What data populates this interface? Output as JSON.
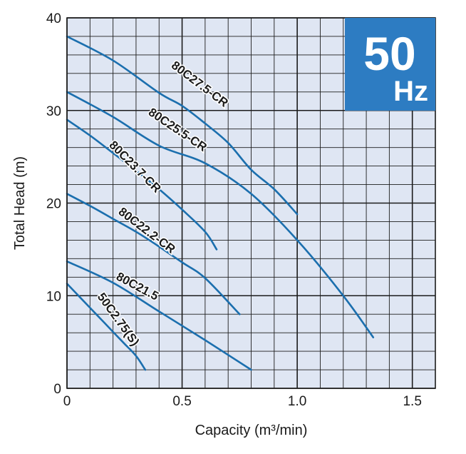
{
  "badge": {
    "value": "50",
    "unit": "Hz",
    "color": "#2d7cc2"
  },
  "colors": {
    "plot_bg": "#dfe6f3",
    "grid": "#1c1c1c",
    "curve": "#1b6fae"
  },
  "chart_data": {
    "type": "line",
    "title": "",
    "xlabel": "Capacity (m³/min)",
    "ylabel": "Total Head (m)",
    "xlim": [
      0,
      1.6
    ],
    "ylim": [
      0,
      40
    ],
    "x_ticks": [
      0,
      0.5,
      1.0,
      1.5
    ],
    "x_tick_labels": [
      "0",
      "0.5",
      "1.0",
      "1.5"
    ],
    "y_ticks": [
      0,
      10,
      20,
      30,
      40
    ],
    "y_tick_labels": [
      "0",
      "10",
      "20",
      "30",
      "40"
    ],
    "minor_grid_x": 0.1,
    "minor_grid_y": 2,
    "grid": true,
    "series": [
      {
        "name": "80C27.5-CR",
        "x": [
          0,
          0.2,
          0.4,
          0.5,
          0.6,
          0.7,
          0.8,
          0.9,
          1.0
        ],
        "y": [
          38,
          35.4,
          31.9,
          30.5,
          28.6,
          26.5,
          23.6,
          21.5,
          18.8
        ]
      },
      {
        "name": "80C25.5-CR",
        "x": [
          0,
          0.2,
          0.4,
          0.6,
          0.8,
          1.0,
          1.2,
          1.33
        ],
        "y": [
          32,
          29.3,
          26.2,
          24.3,
          21,
          16,
          10,
          5.5
        ]
      },
      {
        "name": "80C23.7-CR",
        "x": [
          0,
          0.1,
          0.2,
          0.3,
          0.4,
          0.5,
          0.6,
          0.65
        ],
        "y": [
          29,
          27.3,
          25.4,
          23.5,
          21.5,
          19.3,
          16.9,
          15
        ]
      },
      {
        "name": "80C22.2-CR",
        "x": [
          0,
          0.1,
          0.2,
          0.3,
          0.4,
          0.5,
          0.6,
          0.75
        ],
        "y": [
          21,
          19.7,
          18.3,
          16.9,
          15.3,
          13.6,
          11.9,
          8
        ]
      },
      {
        "name": "80C21.5",
        "x": [
          0,
          0.2,
          0.4,
          0.6,
          0.8
        ],
        "y": [
          13.7,
          11.4,
          8.3,
          5.2,
          2
        ]
      },
      {
        "name": "50C2.75(S)",
        "x": [
          0,
          0.05,
          0.1,
          0.15,
          0.2,
          0.25,
          0.3,
          0.34
        ],
        "y": [
          11.3,
          10,
          8.7,
          7.4,
          6.1,
          4.8,
          3.5,
          2
        ]
      }
    ],
    "labels": [
      {
        "series": "80C27.5-CR",
        "text": "80C27.5-CR",
        "x": 0.45,
        "y": 34.7,
        "angle": 37
      },
      {
        "series": "80C25.5-CR",
        "text": "80C25.5-CR",
        "x": 0.35,
        "y": 29.6,
        "angle": 34
      },
      {
        "series": "80C23.7-CR",
        "text": "80C23.7-CR",
        "x": 0.18,
        "y": 26.2,
        "angle": 45
      },
      {
        "series": "80C22.2-CR",
        "text": "80C22.2-CR",
        "x": 0.22,
        "y": 18.9,
        "angle": 37
      },
      {
        "series": "80C21.5",
        "text": "80C21.5",
        "x": 0.21,
        "y": 11.8,
        "angle": 28
      },
      {
        "series": "50C2.75(S)",
        "text": "50C2.75(S)",
        "x": 0.13,
        "y": 9.9,
        "angle": 54
      }
    ]
  }
}
